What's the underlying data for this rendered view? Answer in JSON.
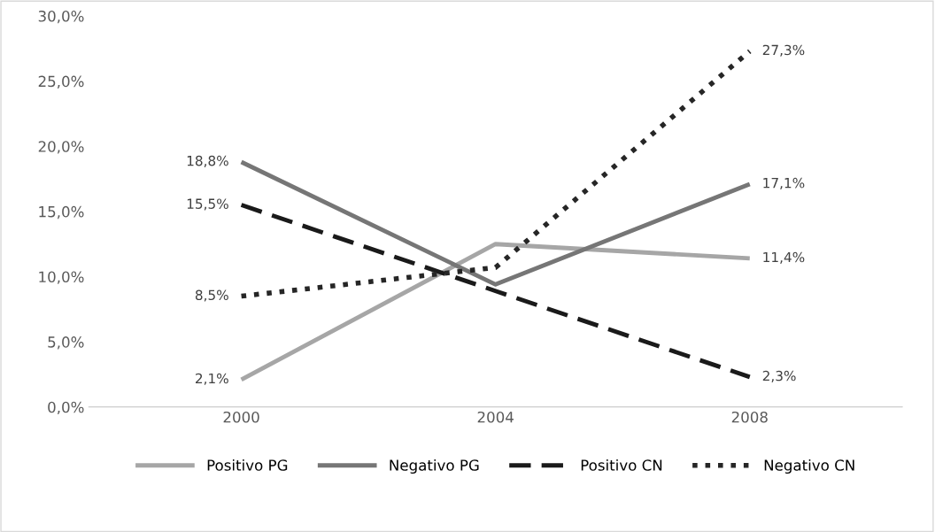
{
  "chart_data": {
    "type": "line",
    "categories": [
      "2000",
      "2004",
      "2008"
    ],
    "series": [
      {
        "name": "Positivo PG",
        "color": "#a6a6a6",
        "line_style": "solid",
        "values": [
          2.1,
          12.5,
          11.4
        ],
        "value_labels": [
          "2,1%",
          null,
          "11,4%"
        ]
      },
      {
        "name": "Negativo PG",
        "color": "#767676",
        "line_style": "solid",
        "values": [
          18.8,
          9.4,
          17.1
        ],
        "value_labels": [
          "18,8%",
          null,
          "17,1%"
        ]
      },
      {
        "name": "Positivo CN",
        "color": "#1a1a1a",
        "line_style": "dashed",
        "values": [
          15.5,
          8.9,
          2.3
        ],
        "value_labels": [
          "15,5%",
          null,
          "2,3%"
        ]
      },
      {
        "name": "Negativo CN",
        "color": "#262626",
        "line_style": "dotted",
        "values": [
          8.5,
          10.7,
          27.3
        ],
        "value_labels": [
          "8,5%",
          null,
          "27,3%"
        ]
      }
    ],
    "ylim": [
      0,
      30
    ],
    "yticks": [
      {
        "value": 0,
        "label": "0,0%"
      },
      {
        "value": 5,
        "label": "5,0%"
      },
      {
        "value": 10,
        "label": "10,0%"
      },
      {
        "value": 15,
        "label": "15,0%"
      },
      {
        "value": 20,
        "label": "20,0%"
      },
      {
        "value": 25,
        "label": "25,0%"
      },
      {
        "value": 30,
        "label": "30,0%"
      }
    ],
    "grid": false,
    "legend": "bottom",
    "marker": "none"
  }
}
